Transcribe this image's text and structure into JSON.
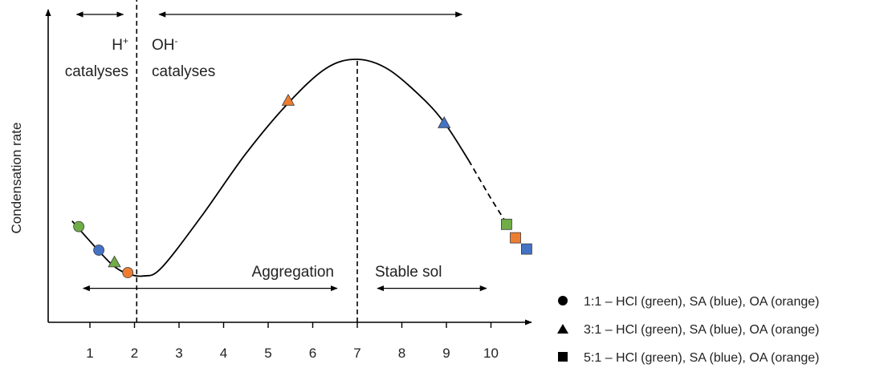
{
  "chart_data": {
    "type": "line",
    "xlabel": "",
    "ylabel": "Condensation rate",
    "x_ticks": [
      "1",
      "2",
      "3",
      "4",
      "5",
      "6",
      "7",
      "8",
      "9",
      "10"
    ],
    "xlim": [
      0.4,
      10.85
    ],
    "grid": false,
    "curve": [
      {
        "x": 0.6,
        "y": 0.28
      },
      {
        "x": 1.0,
        "y": 0.19
      },
      {
        "x": 1.5,
        "y": 0.085
      },
      {
        "x": 1.85,
        "y": 0.045
      },
      {
        "x": 2.2,
        "y": 0.035
      },
      {
        "x": 2.6,
        "y": 0.07
      },
      {
        "x": 3.5,
        "y": 0.3
      },
      {
        "x": 4.5,
        "y": 0.58
      },
      {
        "x": 5.45,
        "y": 0.805
      },
      {
        "x": 6.3,
        "y": 0.96
      },
      {
        "x": 7.0,
        "y": 1.0
      },
      {
        "x": 7.7,
        "y": 0.955
      },
      {
        "x": 8.5,
        "y": 0.82
      },
      {
        "x": 9.0,
        "y": 0.705
      },
      {
        "x": 9.5,
        "y": 0.55
      }
    ],
    "curve_dashed": [
      {
        "x": 9.5,
        "y": 0.55
      },
      {
        "x": 10.0,
        "y": 0.38
      },
      {
        "x": 10.35,
        "y": 0.27
      }
    ],
    "vlines": [
      {
        "x": 2.05,
        "y_top": 1.28
      },
      {
        "x": 7.0,
        "y_top": 1.0
      }
    ],
    "ranges": [
      {
        "from": 0.45,
        "to": 2.0,
        "y": 1.2
      },
      {
        "from": 2.3,
        "to": 9.6,
        "y": 1.2
      },
      {
        "from": 0.6,
        "to": 6.8,
        "y": -0.02
      },
      {
        "from": 7.2,
        "to": 10.15,
        "y": -0.02
      }
    ],
    "annotations": [
      {
        "id": "hplus",
        "base": "H",
        "sup": "+",
        "line2": "catalyses"
      },
      {
        "id": "ohminus",
        "base": "OH",
        "sup": "-",
        "line2": "catalyses"
      },
      {
        "id": "aggregation",
        "text": "Aggregation"
      },
      {
        "id": "stable",
        "text": "Stable sol"
      }
    ],
    "series": [
      {
        "name": "1:1 – HCl (green), SA (blue), OA (orange)",
        "marker": "circle",
        "points": [
          {
            "x": 0.75,
            "y": 0.255,
            "color": "#70ad47"
          },
          {
            "x": 1.2,
            "y": 0.15,
            "color": "#4472c4"
          },
          {
            "x": 1.85,
            "y": 0.05,
            "color": "#ed7d31"
          }
        ]
      },
      {
        "name": "3:1 – HCl (green), SA (blue), OA (orange)",
        "marker": "triangle",
        "points": [
          {
            "x": 1.55,
            "y": 0.095,
            "color": "#70ad47"
          },
          {
            "x": 8.95,
            "y": 0.715,
            "color": "#4472c4"
          },
          {
            "x": 5.45,
            "y": 0.815,
            "color": "#ed7d31"
          }
        ]
      },
      {
        "name": "5:1 – HCl (green), SA (blue), OA (orange)",
        "marker": "square",
        "points": [
          {
            "x": 10.35,
            "y": 0.265,
            "color": "#70ad47"
          },
          {
            "x": 10.8,
            "y": 0.155,
            "color": "#4472c4"
          },
          {
            "x": 10.55,
            "y": 0.205,
            "color": "#ed7d31"
          }
        ]
      }
    ],
    "legend_position": "bottom-right"
  }
}
